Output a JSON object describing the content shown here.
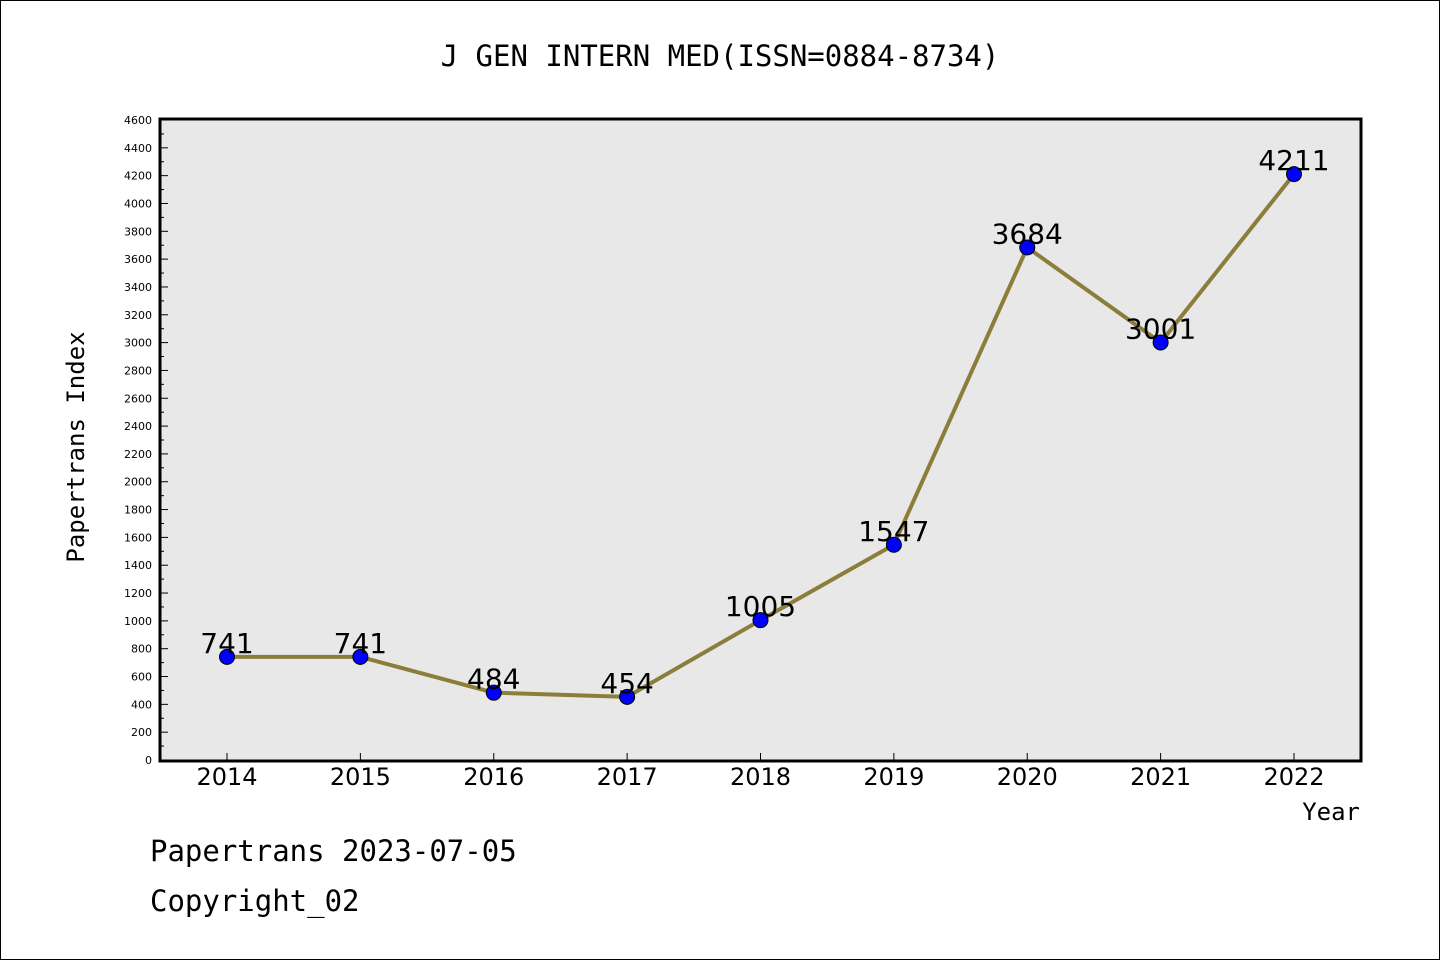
{
  "chart_data": {
    "type": "line",
    "title": "J GEN INTERN MED(ISSN=0884-8734)",
    "xlabel": "Year",
    "ylabel": "Papertrans Index",
    "categories": [
      "2014",
      "2015",
      "2016",
      "2017",
      "2018",
      "2019",
      "2020",
      "2021",
      "2022"
    ],
    "series": [
      {
        "values": [
          741,
          741,
          484,
          454,
          1005,
          1547,
          3684,
          3001,
          4211
        ]
      }
    ],
    "data_labels": [
      "741",
      "741",
      "484",
      "454",
      "1005",
      "1547",
      "3684",
      "3001",
      "4211"
    ],
    "ylim": [
      0,
      4600
    ],
    "ytick_step": 200,
    "yticks": [
      "0",
      "200",
      "400",
      "600",
      "800",
      "1000",
      "1200",
      "1400",
      "1600",
      "1800",
      "2000",
      "2200",
      "2400",
      "2600",
      "2800",
      "3000",
      "3200",
      "3400",
      "3600",
      "3800",
      "4000",
      "4200",
      "4400",
      "4600"
    ],
    "grid": false,
    "legend": "none",
    "colors": {
      "plot_background": "#e8e8e8",
      "line": "#8b7d3a",
      "marker": "#0000ff"
    }
  },
  "footer": {
    "line1": "Papertrans 2023-07-05",
    "line2": "Copyright_02"
  }
}
